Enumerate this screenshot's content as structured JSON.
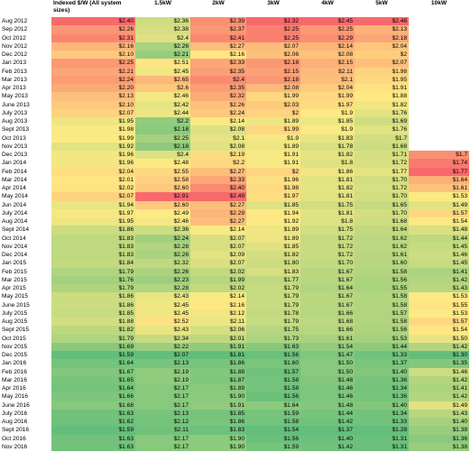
{
  "table": {
    "headers": [
      "Indexed $/W (All system sizes)",
      "1.5kW",
      "2kW",
      "3kW",
      "4kW",
      "5kW",
      "10kW"
    ],
    "color_scale": {
      "low": "#63be7b",
      "mid": "#ffeb84",
      "high": "#f8696b",
      "empty": "#ffffff",
      "per_column": true
    },
    "rows": [
      {
        "label": "Aug 2012",
        "cells": [
          "$2.40",
          "$2.36",
          "$2.39",
          "$2.32",
          "$2.45",
          "$2.46",
          null
        ]
      },
      {
        "label": "Sep 2012",
        "cells": [
          "$2.26",
          "$2.38",
          "$2.37",
          "$2.25",
          "$2.25",
          "$2.13",
          null
        ]
      },
      {
        "label": "Oct 2012",
        "cells": [
          "$2.31",
          "$2.4",
          "$2.41",
          "$2.25",
          "$2.29",
          "$2.18",
          null
        ]
      },
      {
        "label": "Nov 2012",
        "cells": [
          "$2.16",
          "$2.26",
          "$2.27",
          "$2.07",
          "$2.14",
          "$2.04",
          null
        ]
      },
      {
        "label": "Dec 2012",
        "cells": [
          "$2.10",
          "$2.21",
          "$2.16",
          "$2.06",
          "$2.08",
          "$2",
          null
        ]
      },
      {
        "label": "Jan 2013",
        "cells": [
          "$2.25",
          "$2.51",
          "$2.33",
          "$2.18",
          "$2.15",
          "$2.07",
          null
        ]
      },
      {
        "label": "Feb 2013",
        "cells": [
          "$2.21",
          "$2.45",
          "$2.35",
          "$2.15",
          "$2.11",
          "$1.98",
          null
        ]
      },
      {
        "label": "Mar 2013",
        "cells": [
          "$2.24",
          "$2.65",
          "$2.4",
          "$2.18",
          "$2.1",
          "$1.95",
          null
        ]
      },
      {
        "label": "Apr 2013",
        "cells": [
          "$2.20",
          "$2.6",
          "$2.35",
          "$2.08",
          "$2.04",
          "$1.91",
          null
        ]
      },
      {
        "label": "May 2013",
        "cells": [
          "$2.13",
          "$2.46",
          "$2.32",
          "$1.99",
          "$1.99",
          "$1.88",
          null
        ]
      },
      {
        "label": "June 2013",
        "cells": [
          "$2.10",
          "$2.42",
          "$2.26",
          "$2.03",
          "$1.97",
          "$1.82",
          null
        ]
      },
      {
        "label": "July 2013",
        "cells": [
          "$2.07",
          "$2.44",
          "$2.24",
          "$2",
          "$1.9",
          "$1.76",
          null
        ]
      },
      {
        "label": "Aug 2013",
        "cells": [
          "$1.95",
          "$2.2",
          "$2.14",
          "$1.89",
          "$1.85",
          "$1.69",
          null
        ]
      },
      {
        "label": "Sept 2013",
        "cells": [
          "$1.98",
          "$2.18",
          "$2.08",
          "$1.99",
          "$1.9",
          "$1.76",
          null
        ]
      },
      {
        "label": "Oct 2013",
        "cells": [
          "$1.99",
          "$2.25",
          "$2.1",
          "$1.9",
          "$1.83",
          "$1.7",
          null
        ]
      },
      {
        "label": "Nov 2013",
        "cells": [
          "$1.92",
          "$2.18",
          "$2.08",
          "$1.89",
          "$1.78",
          "$1.68",
          null
        ]
      },
      {
        "label": "Dec 2013",
        "cells": [
          "$1.96",
          "$2.4",
          "$2.19",
          "$1.91",
          "$1.82",
          "$1.71",
          "$1.7"
        ]
      },
      {
        "label": "Jan 2014",
        "cells": [
          "$1.96",
          "$2.48",
          "$2.2",
          "$1.91",
          "$1.8",
          "$1.72",
          "$1.74"
        ]
      },
      {
        "label": "Feb 2014",
        "cells": [
          "$2.04",
          "$2.55",
          "$2.27",
          "$2",
          "$1.86",
          "$1.77",
          "$1.77"
        ]
      },
      {
        "label": "Mar 2014",
        "cells": [
          "$2.01",
          "$2.58",
          "$2.33",
          "$1.96",
          "$1.81",
          "$1.70",
          "$1.64"
        ]
      },
      {
        "label": "Apr 2014",
        "cells": [
          "$2.02",
          "$2.60",
          "$2.40",
          "$1.98",
          "$1.82",
          "$1.72",
          "$1.61"
        ]
      },
      {
        "label": "May 2014",
        "cells": [
          "$2.07",
          "$2.91",
          "$2.49",
          "$1.97",
          "$1.81",
          "$1.70",
          "$1.53"
        ]
      },
      {
        "label": "Jun 2014",
        "cells": [
          "$1.94",
          "$2.60",
          "$2.27",
          "$1.85",
          "$1.75",
          "$1.65",
          "$1.49"
        ]
      },
      {
        "label": "July 2014",
        "cells": [
          "$1.97",
          "$2.49",
          "$2.29",
          "$1.94",
          "$1.81",
          "$1.70",
          "$1.57"
        ]
      },
      {
        "label": "Aug 2014",
        "cells": [
          "$1.95",
          "$2.46",
          "$2.27",
          "$1.92",
          "$1.8",
          "$1.68",
          "$1.54"
        ]
      },
      {
        "label": "Sept 2014",
        "cells": [
          "$1.86",
          "$2.36",
          "$2.14",
          "$1.89",
          "$1.75",
          "$1.64",
          "$1.48"
        ]
      },
      {
        "label": "Oct 2014",
        "cells": [
          "$1.83",
          "$2.24",
          "$2.07",
          "$1.89",
          "$1.72",
          "$1.62",
          "$1.44"
        ]
      },
      {
        "label": "Nov 2014",
        "cells": [
          "$1.83",
          "$2.28",
          "$2.07",
          "$1.85",
          "$1.72",
          "$1.62",
          "$1.45"
        ]
      },
      {
        "label": "Dec 2014",
        "cells": [
          "$1.83",
          "$2.26",
          "$2.09",
          "$1.82",
          "$1.72",
          "$1.61",
          "$1.46"
        ]
      },
      {
        "label": "Jan 2015",
        "cells": [
          "$1.84",
          "$2.32",
          "$2.07",
          "$1.80",
          "$1.70",
          "$1.60",
          "$1.45"
        ]
      },
      {
        "label": "Feb 2015",
        "cells": [
          "$1.79",
          "$2.26",
          "$2.02",
          "$1.83",
          "$1.67",
          "$1.58",
          "$1.41"
        ]
      },
      {
        "label": "Mar 2015",
        "cells": [
          "$1.76",
          "$2.23",
          "$1.99",
          "$1.77",
          "$1.67",
          "$1.56",
          "$1.42"
        ]
      },
      {
        "label": "Apr 2015",
        "cells": [
          "$1.79",
          "$2.28",
          "$2.02",
          "$1.79",
          "$1.64",
          "$1.55",
          "$1.43"
        ]
      },
      {
        "label": "May 2015",
        "cells": [
          "$1.86",
          "$2.43",
          "$2.14",
          "$1.79",
          "$1.67",
          "$1.58",
          "$1.53"
        ]
      },
      {
        "label": "June 2015",
        "cells": [
          "$1.86",
          "$2.45",
          "$2.16",
          "$1.79",
          "$1.67",
          "$1.58",
          "$1.55"
        ]
      },
      {
        "label": "July 2015",
        "cells": [
          "$1.85",
          "$2.45",
          "$2.12",
          "$1.78",
          "$1.66",
          "$1.57",
          "$1.53"
        ]
      },
      {
        "label": "Aug 2015",
        "cells": [
          "$1.88",
          "$2.52",
          "$2.11",
          "$1.79",
          "$1.68",
          "$1.58",
          "$1.57"
        ]
      },
      {
        "label": "Sept 2015",
        "cells": [
          "$1.82",
          "$2.43",
          "$2.06",
          "$1.75",
          "$1.66",
          "$1.56",
          "$1.54"
        ]
      },
      {
        "label": "Oct 2015",
        "cells": [
          "$1.79",
          "$2.34",
          "$2.01",
          "$1.73",
          "$1.61",
          "$1.53",
          "$1.50"
        ]
      },
      {
        "label": "Nov 2015",
        "cells": [
          "$1.69",
          "$2.22",
          "$1.91",
          "$1.63",
          "$1.54",
          "$1.44",
          "$1.42"
        ]
      },
      {
        "label": "Dec 2015",
        "cells": [
          "$1.59",
          "$2.07",
          "$1.81",
          "$1.56",
          "$1.47",
          "$1.33",
          "$1.30"
        ]
      },
      {
        "label": "Jan 2016",
        "cells": [
          "$1.64",
          "$2.13",
          "$1.86",
          "$1.60",
          "$1.50",
          "$1.37",
          "$1.35"
        ]
      },
      {
        "label": "Feb 2016",
        "cells": [
          "$1.67",
          "$2.19",
          "$1.88",
          "$1.57",
          "$1.50",
          "$1.40",
          "$1.46"
        ]
      },
      {
        "label": "Mar 2016",
        "cells": [
          "$1.65",
          "$2.19",
          "$1.87",
          "$1.58",
          "$1.48",
          "$1.36",
          "$1.42"
        ]
      },
      {
        "label": "Apr 2016",
        "cells": [
          "$1.64",
          "$2.17",
          "$1.89",
          "$1.58",
          "$1.46",
          "$1.34",
          "$1.41"
        ]
      },
      {
        "label": "May 2016",
        "cells": [
          "$1.66",
          "$2.17",
          "$1.90",
          "$1.56",
          "$1.46",
          "$1.36",
          "$1.42"
        ]
      },
      {
        "label": "June 2016",
        "cells": [
          "$1.68",
          "$2.17",
          "$1.91",
          "$1.64",
          "$1.48",
          "$1.40",
          "$1.49"
        ]
      },
      {
        "label": "July 2016",
        "cells": [
          "$1.63",
          "$2.13",
          "$1.85",
          "$1.59",
          "$1.44",
          "$1.34",
          "$1.43"
        ]
      },
      {
        "label": "Aug 2016",
        "cells": [
          "$1.62",
          "$2.12",
          "$1.86",
          "$1.58",
          "$1.42",
          "$1.33",
          "$1.40"
        ]
      },
      {
        "label": "Sept 2016",
        "cells": [
          "$1.59",
          "$2.11",
          "$1.83",
          "$1.54",
          "$1.37",
          "$1.28",
          "$1.38"
        ]
      },
      {
        "label": "Oct 2016",
        "cells": [
          "$1.63",
          "$2.17",
          "$1.90",
          "$1.56",
          "$1.40",
          "$1.31",
          "$1.36"
        ]
      },
      {
        "label": "Nov 2016",
        "cells": [
          "$1.63",
          "$2.17",
          "$1.90",
          "$1.59",
          "$1.42",
          "$1.31",
          "$1.38"
        ]
      }
    ]
  }
}
